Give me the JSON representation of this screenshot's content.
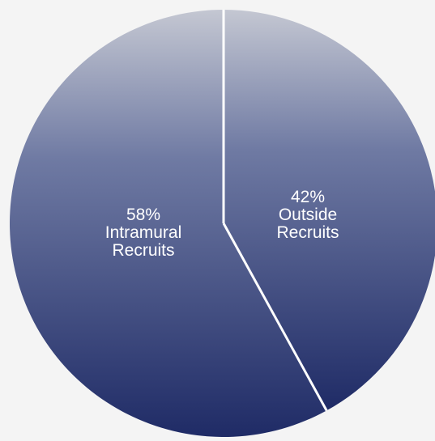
{
  "chart_data": {
    "type": "pie",
    "title": "",
    "slices": [
      {
        "percent_label": "42%",
        "name_lines": [
          "Outside",
          "Recruits"
        ],
        "value": 42
      },
      {
        "percent_label": "58%",
        "name_lines": [
          "Intramural",
          "Recruits"
        ],
        "value": 58
      }
    ],
    "colors": {
      "slice_top": "#c4c7d2",
      "slice_mid": "#6f7aa3",
      "slice_bottom": "#1f2b66",
      "divider": "#ffffff",
      "background": "#f4f4f4"
    }
  }
}
